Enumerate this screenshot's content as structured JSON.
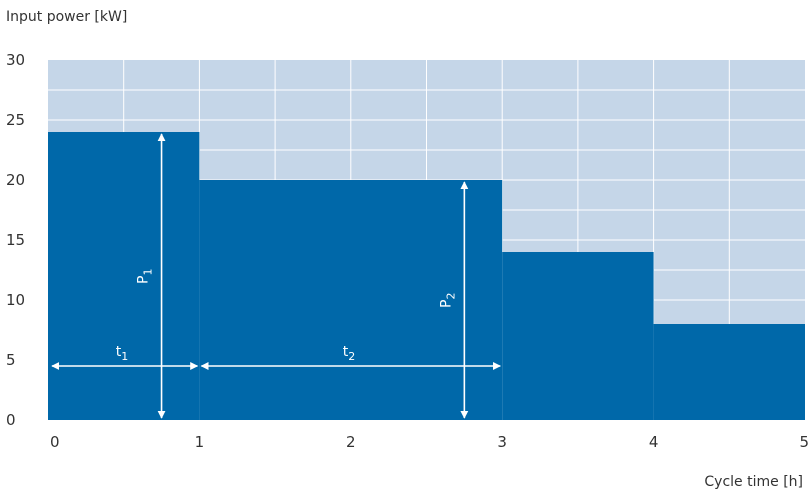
{
  "chart_data": {
    "type": "area",
    "step": true,
    "ylabel": "Input power [kW]",
    "xlabel": "Cycle time [h]",
    "xlim": [
      0,
      5
    ],
    "ylim": [
      0,
      30
    ],
    "xticks": [
      "0",
      "1",
      "2",
      "3",
      "4",
      "5"
    ],
    "yticks": [
      "0",
      "5",
      "10",
      "15",
      "20",
      "25",
      "30"
    ],
    "grid": true,
    "segments": [
      {
        "x_start": 0,
        "x_end": 1,
        "value": 24
      },
      {
        "x_start": 1,
        "x_end": 3,
        "value": 20
      },
      {
        "x_start": 3,
        "x_end": 4,
        "value": 14
      },
      {
        "x_start": 4,
        "x_end": 5,
        "value": 8
      }
    ],
    "annotations": {
      "p1": {
        "label": "P",
        "sub": "1",
        "x": 0.75,
        "y_from": 0,
        "y_to": 24
      },
      "p2": {
        "label": "P",
        "sub": "2",
        "x": 2.75,
        "y_from": 0,
        "y_to": 20
      },
      "t1": {
        "label": "t",
        "sub": "1",
        "y": 4.5,
        "x_from": 0,
        "x_to": 1
      },
      "t2": {
        "label": "t",
        "sub": "2",
        "y": 4.5,
        "x_from": 1,
        "x_to": 3
      }
    },
    "colors": {
      "fill": "#0068a9",
      "background": "#c5d6e8",
      "grid": "#ffffff"
    }
  }
}
